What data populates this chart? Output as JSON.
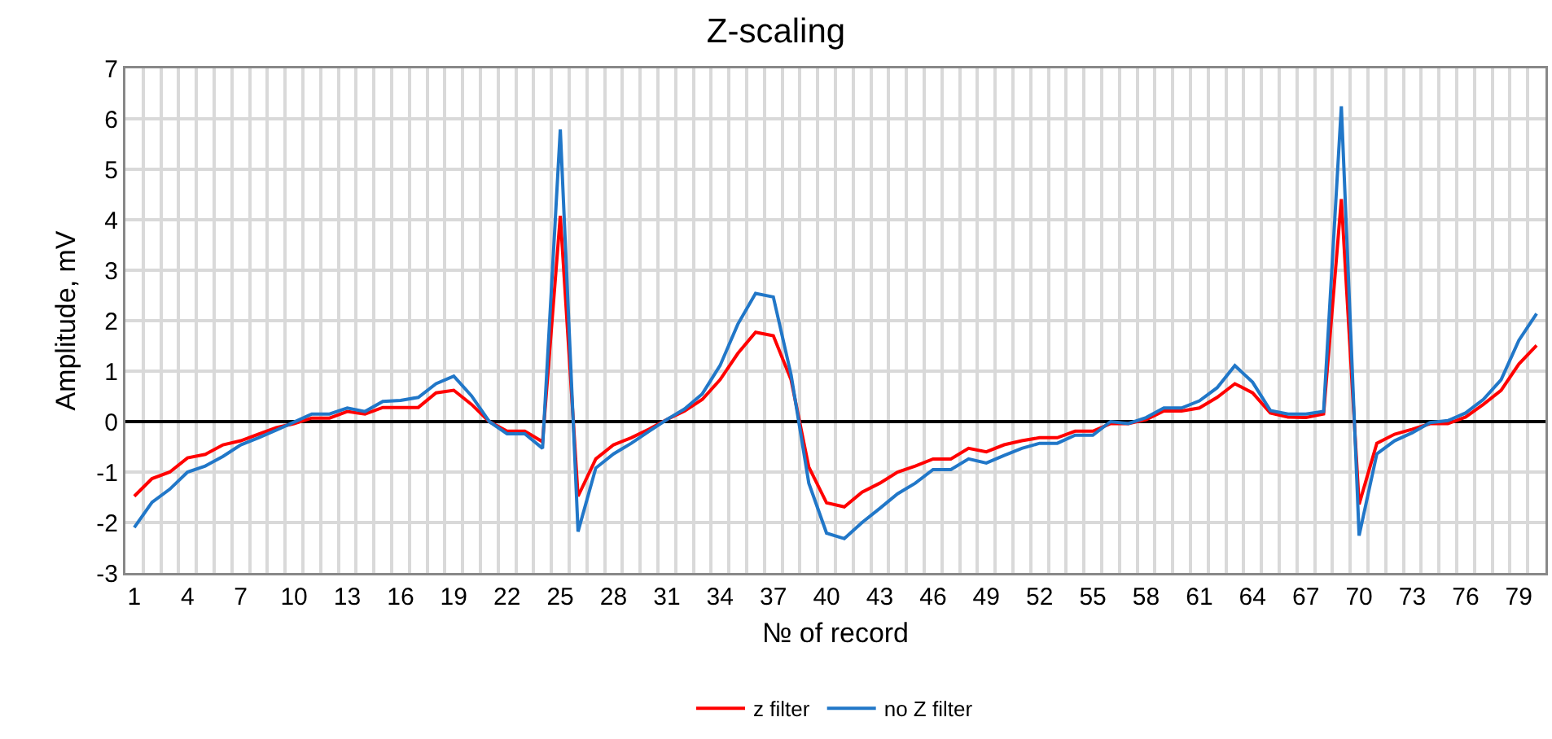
{
  "chart_data": {
    "type": "line",
    "title": "Z-scaling",
    "xlabel": "№ of record",
    "ylabel": "Amplitude, mV",
    "categories": [
      "1",
      null,
      null,
      "4",
      null,
      null,
      "7",
      null,
      null,
      "10",
      null,
      null,
      "13",
      null,
      null,
      "16",
      null,
      null,
      "19",
      null,
      null,
      "22",
      null,
      null,
      "25",
      null,
      null,
      "28",
      null,
      null,
      "31",
      null,
      null,
      "34",
      null,
      null,
      "37",
      null,
      null,
      "40",
      null,
      null,
      "43",
      null,
      null,
      "46",
      null,
      null,
      "49",
      null,
      null,
      "52",
      null,
      null,
      "55",
      null,
      null,
      "58",
      null,
      null,
      "61",
      null,
      null,
      "64",
      null,
      null,
      "67",
      null,
      null,
      "70",
      null,
      null,
      "73",
      null,
      null,
      "76",
      null,
      null,
      "79",
      null
    ],
    "series": [
      {
        "name": "z filter",
        "color": "#ff0000",
        "values": [
          -1.48,
          -1.13,
          -1.0,
          -0.72,
          -0.65,
          -0.46,
          -0.38,
          -0.25,
          -0.12,
          -0.04,
          0.07,
          0.07,
          0.2,
          0.15,
          0.28,
          0.28,
          0.28,
          0.57,
          0.62,
          0.34,
          0,
          -0.19,
          -0.19,
          -0.4,
          4.08,
          -1.48,
          -0.74,
          -0.46,
          -0.32,
          -0.15,
          0.04,
          0.21,
          0.44,
          0.83,
          1.35,
          1.77,
          1.7,
          0.83,
          -0.9,
          -1.61,
          -1.69,
          -1.4,
          -1.22,
          -1.0,
          -0.88,
          -0.74,
          -0.74,
          -0.53,
          -0.6,
          -0.46,
          -0.38,
          -0.32,
          -0.32,
          -0.19,
          -0.19,
          -0.04,
          -0.04,
          0.04,
          0.21,
          0.21,
          0.27,
          0.48,
          0.75,
          0.57,
          0.17,
          0.09,
          0.08,
          0.15,
          4.41,
          -1.64,
          -0.43,
          -0.25,
          -0.15,
          -0.04,
          -0.04,
          0.09,
          0.34,
          0.62,
          1.14,
          1.51
        ]
      },
      {
        "name": "no Z filter",
        "color": "#2177c8",
        "values": [
          -2.1,
          -1.6,
          -1.34,
          -1.0,
          -0.88,
          -0.69,
          -0.46,
          -0.32,
          -0.17,
          -0.01,
          0.15,
          0.15,
          0.27,
          0.2,
          0.4,
          0.42,
          0.48,
          0.75,
          0.9,
          0.51,
          0,
          -0.24,
          -0.24,
          -0.53,
          5.79,
          -2.18,
          -0.92,
          -0.64,
          -0.43,
          -0.19,
          0.04,
          0.25,
          0.55,
          1.11,
          1.93,
          2.54,
          2.47,
          0.93,
          -1.22,
          -2.21,
          -2.32,
          -2.0,
          -1.72,
          -1.43,
          -1.22,
          -0.95,
          -0.95,
          -0.74,
          -0.82,
          -0.67,
          -0.53,
          -0.43,
          -0.43,
          -0.27,
          -0.27,
          0,
          -0.04,
          0.08,
          0.27,
          0.27,
          0.41,
          0.67,
          1.11,
          0.78,
          0.22,
          0.15,
          0.15,
          0.2,
          6.25,
          -2.26,
          -0.64,
          -0.38,
          -0.22,
          -0.02,
          0.02,
          0.17,
          0.44,
          0.83,
          1.61,
          2.14
        ]
      }
    ],
    "ylim": [
      -3,
      7
    ],
    "yticks": [
      -3,
      -2,
      -1,
      0,
      1,
      2,
      3,
      4,
      5,
      6,
      7
    ],
    "grid": true,
    "legend": "bottom",
    "marker": "none",
    "line_style": "solid"
  }
}
